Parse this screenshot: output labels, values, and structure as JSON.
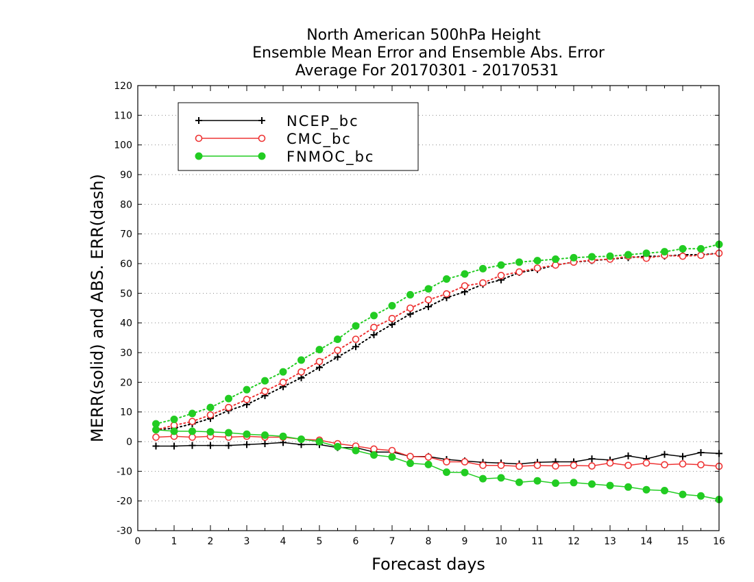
{
  "chart_data": {
    "type": "line",
    "title": [
      "North American 500hPa Height",
      "Ensemble Mean Error and Ensemble Abs. Error",
      "Average For 20170301 - 20170531"
    ],
    "xlabel": "Forecast days",
    "ylabel": "MERR(solid) and ABS. ERR(dash)",
    "xlim": [
      0,
      16
    ],
    "ylim": [
      -30,
      120
    ],
    "xticks": [
      0,
      1,
      2,
      3,
      4,
      5,
      6,
      7,
      8,
      9,
      10,
      11,
      12,
      13,
      14,
      15,
      16
    ],
    "yticks": [
      -30,
      -20,
      -10,
      0,
      10,
      20,
      30,
      40,
      50,
      60,
      70,
      80,
      90,
      100,
      110,
      120
    ],
    "grid": "horizontal dotted",
    "legend_position": "top-left",
    "x": [
      0.5,
      1,
      1.5,
      2,
      2.5,
      3,
      3.5,
      4,
      4.5,
      5,
      5.5,
      6,
      6.5,
      7,
      7.5,
      8,
      8.5,
      9,
      9.5,
      10,
      10.5,
      11,
      11.5,
      12,
      12.5,
      13,
      13.5,
      14,
      14.5,
      15,
      15.5,
      16
    ],
    "series": [
      {
        "name": "NCEP_bc",
        "color": "#000000",
        "marker": "plus",
        "merr": [
          -1.5,
          -1.5,
          -1.3,
          -1.3,
          -1.3,
          -1.0,
          -0.7,
          -0.3,
          -1.0,
          -1.0,
          -2.0,
          -2.0,
          -3.5,
          -3.5,
          -5.0,
          -5.0,
          -6.0,
          -6.5,
          -7.0,
          -7.2,
          -7.5,
          -7.0,
          -6.8,
          -6.8,
          -5.8,
          -6.2,
          -4.8,
          -5.8,
          -4.3,
          -5.0,
          -3.7,
          -4.0
        ],
        "abs_err": [
          4.0,
          4.5,
          6.0,
          7.8,
          10.5,
          12.5,
          15.5,
          18.5,
          21.5,
          25.0,
          28.5,
          32.0,
          36.0,
          39.5,
          43.0,
          45.5,
          48.5,
          50.5,
          53.0,
          54.5,
          57.0,
          58.0,
          59.5,
          60.5,
          61.0,
          61.5,
          62.0,
          62.5,
          62.5,
          63.0,
          63.0,
          63.5
        ]
      },
      {
        "name": "CMC_bc",
        "color": "#ee3333",
        "marker": "open-circle",
        "merr": [
          1.5,
          1.8,
          1.5,
          1.8,
          1.5,
          1.8,
          1.5,
          1.5,
          0.8,
          0.5,
          -0.7,
          -1.5,
          -2.5,
          -3.0,
          -5.0,
          -5.2,
          -6.8,
          -6.8,
          -8.0,
          -8.0,
          -8.3,
          -8.0,
          -8.2,
          -8.0,
          -8.2,
          -7.2,
          -8.0,
          -7.2,
          -7.8,
          -7.5,
          -7.8,
          -8.3
        ],
        "abs_err": [
          4.0,
          5.5,
          6.8,
          9.0,
          11.5,
          14.2,
          17.0,
          20.0,
          23.5,
          27.0,
          30.8,
          34.5,
          38.5,
          41.5,
          45.0,
          47.8,
          49.8,
          52.5,
          53.5,
          56.0,
          57.2,
          58.5,
          59.5,
          60.5,
          61.2,
          61.5,
          62.5,
          61.8,
          62.8,
          62.5,
          62.8,
          63.5
        ]
      },
      {
        "name": "FNMOC_bc",
        "color": "#22cc22",
        "marker": "filled-circle",
        "merr": [
          4.0,
          3.5,
          3.5,
          3.3,
          3.0,
          2.5,
          2.2,
          1.8,
          0.8,
          0.0,
          -1.7,
          -3.0,
          -4.5,
          -5.2,
          -7.3,
          -7.7,
          -10.3,
          -10.4,
          -12.5,
          -12.2,
          -13.7,
          -13.2,
          -14.0,
          -13.8,
          -14.3,
          -14.8,
          -15.3,
          -16.2,
          -16.5,
          -17.8,
          -18.3,
          -19.5
        ],
        "abs_err": [
          6.0,
          7.5,
          9.5,
          11.5,
          14.5,
          17.5,
          20.5,
          23.5,
          27.5,
          31.0,
          34.5,
          39.0,
          42.5,
          45.8,
          49.5,
          51.5,
          54.8,
          56.5,
          58.3,
          59.5,
          60.5,
          61.0,
          61.5,
          62.0,
          62.3,
          62.5,
          63.0,
          63.5,
          64.0,
          65.0,
          65.0,
          66.5
        ]
      }
    ]
  }
}
